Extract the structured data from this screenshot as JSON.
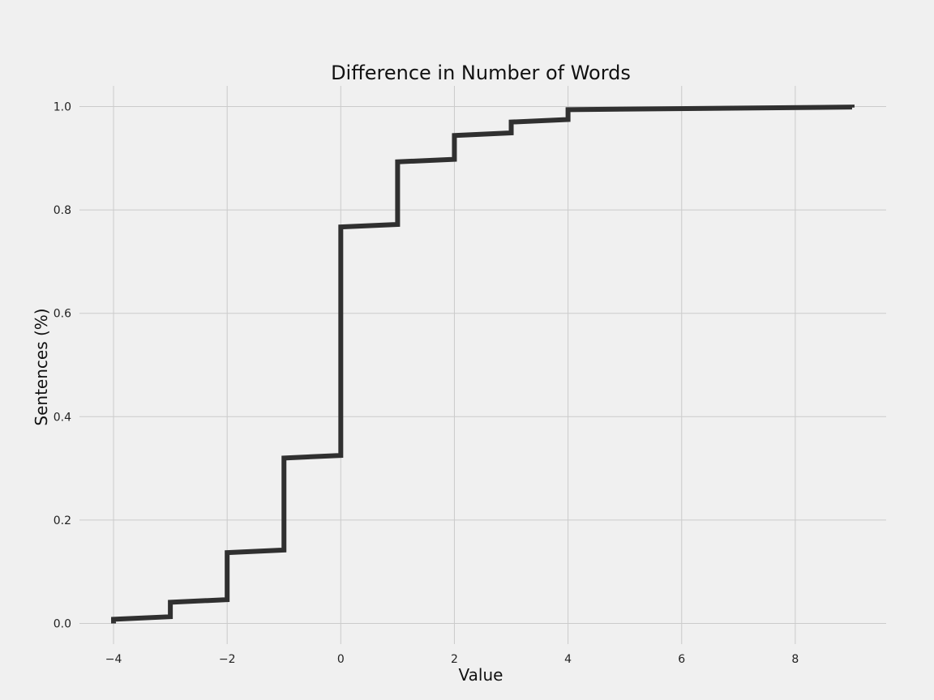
{
  "chart_data": {
    "type": "line",
    "step": "post",
    "title": "Difference in Number of Words",
    "xlabel": "Value",
    "ylabel": "Sentences (%)",
    "xlim": [
      -4.6,
      9.6
    ],
    "ylim": [
      -0.04,
      1.04
    ],
    "xticks": [
      -4,
      -2,
      0,
      2,
      4,
      6,
      8
    ],
    "xtick_labels": [
      "−4",
      "−2",
      "0",
      "2",
      "4",
      "6",
      "8"
    ],
    "yticks": [
      0.0,
      0.2,
      0.4,
      0.6,
      0.8,
      1.0
    ],
    "ytick_labels": [
      "0.0",
      "0.2",
      "0.4",
      "0.6",
      "0.8",
      "1.0"
    ],
    "grid": true,
    "line_color": "#303030",
    "background_color": "#f0f0f0",
    "series": [
      {
        "x": [
          -4,
          -3,
          -2,
          -1,
          0,
          1,
          2,
          3,
          4,
          9
        ],
        "y": [
          0.008,
          0.041,
          0.137,
          0.32,
          0.767,
          0.893,
          0.944,
          0.97,
          0.994,
          0.998
        ]
      }
    ]
  }
}
